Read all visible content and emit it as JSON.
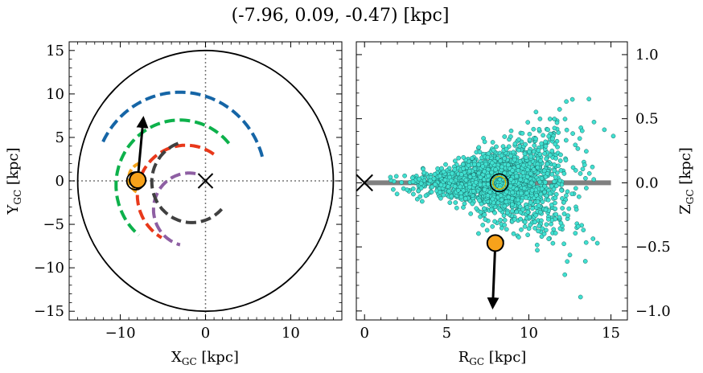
{
  "title": "(-7.96, 0.09, -0.47) [kpc]",
  "chart_data": [
    {
      "type": "scatter",
      "panel": "left",
      "xlabel_main": "X",
      "xlabel_sub": "GC",
      "xlabel_unit": " [kpc]",
      "ylabel_main": "Y",
      "ylabel_sub": "GC",
      "ylabel_unit": " [kpc]",
      "xlim": [
        -16,
        16
      ],
      "ylim": [
        -16,
        16
      ],
      "xticks": [
        -10,
        0,
        10
      ],
      "yticks": [
        -15,
        -10,
        -5,
        0,
        5,
        10,
        15
      ],
      "xtick_labels": [
        "−10",
        "0",
        "10"
      ],
      "ytick_labels": [
        "−15",
        "−10",
        "−5",
        "0",
        "5",
        "10",
        "15"
      ],
      "boundary_circle_radius": 15,
      "galactic_center": [
        0,
        0
      ],
      "sun_position": [
        -8.2,
        0
      ],
      "object_position": [
        -7.96,
        0.09
      ],
      "velocity_arrow": {
        "from": [
          -7.96,
          0.09
        ],
        "to": [
          -7.3,
          7.2
        ]
      },
      "spiral_arms": [
        {
          "color": "#1565a6",
          "radius": 10.0,
          "theta_start_deg": 15,
          "theta_end_deg": 155
        },
        {
          "color": "#0db14b",
          "radius": 7.5,
          "theta_start_deg": 40,
          "theta_end_deg": 230
        },
        {
          "color": "#e8381a",
          "radius": 5.7,
          "theta_start_deg": 55,
          "theta_end_deg": 240
        },
        {
          "color": "#8e5fa3",
          "radius": 4.2,
          "theta_start_deg": 80,
          "theta_end_deg": 255
        },
        {
          "color": "#404040",
          "radius": 4.7,
          "theta_start_deg": 110,
          "theta_end_deg": 318
        }
      ],
      "small_arm": {
        "color": "#f3a21a",
        "radius": 1.8
      }
    },
    {
      "type": "scatter",
      "panel": "right",
      "xlabel_main": "R",
      "xlabel_sub": "GC",
      "xlabel_unit": " [kpc]",
      "ylabel_main": "Z",
      "ylabel_sub": "GC",
      "ylabel_unit": " [kpc]",
      "xlim": [
        -0.5,
        16
      ],
      "ylim": [
        -1.07,
        1.1
      ],
      "xticks": [
        0,
        5,
        10,
        15
      ],
      "yticks": [
        -1.0,
        -0.5,
        0.0,
        0.5,
        1.0
      ],
      "xtick_labels": [
        "0",
        "5",
        "10",
        "15"
      ],
      "ytick_labels": [
        "−1.0",
        "−0.5",
        "0.0",
        "0.5",
        "1.0"
      ],
      "disk_line": {
        "x": [
          0,
          15
        ],
        "y": 0
      },
      "galactic_center": [
        0,
        0
      ],
      "sun_position": [
        8.2,
        0
      ],
      "object_position": [
        7.96,
        -0.47
      ],
      "velocity_arrow": {
        "from": [
          7.96,
          -0.47
        ],
        "to": [
          7.8,
          -0.97
        ]
      },
      "stars_color": "#40e0d0",
      "stars_count": 2000
    }
  ]
}
